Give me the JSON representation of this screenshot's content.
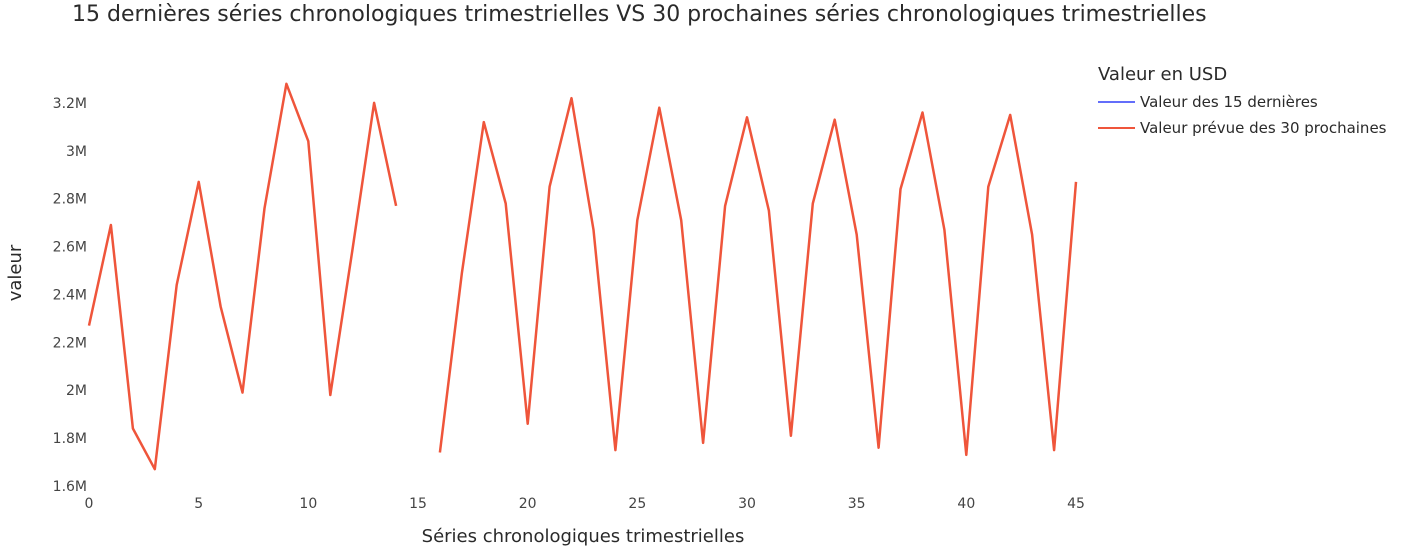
{
  "chart_data": {
    "type": "line",
    "title": "15 dernières séries chronologiques trimestrielles VS 30 prochaines séries chronologiques trimestrielles",
    "xlabel": "Séries chronologiques trimestrielles",
    "ylabel": "valeur",
    "xlim": [
      0,
      45
    ],
    "ylim": [
      1.6,
      3.3
    ],
    "x_ticks": [
      0,
      5,
      10,
      15,
      20,
      25,
      30,
      35,
      40,
      45
    ],
    "y_ticks": [
      1.6,
      1.8,
      2.0,
      2.2,
      2.4,
      2.6,
      2.8,
      3.0,
      3.2
    ],
    "y_tick_labels": [
      "1.6M",
      "1.8M",
      "2M",
      "2.2M",
      "2.4M",
      "2.6M",
      "2.8M",
      "3M",
      "3.2M"
    ],
    "legend_title": "Valeur en USD",
    "legend_position": "top-right",
    "grid": false,
    "series": [
      {
        "name": "Valeur des 15 dernières",
        "color": "#636efa",
        "x": [],
        "values": []
      },
      {
        "name": "Valeur prévue des 30 prochaines",
        "color": "#ef553b",
        "segments": [
          {
            "x": [
              0,
              1,
              2,
              3,
              4,
              5,
              6,
              7,
              8,
              9,
              10,
              11,
              12,
              13,
              14
            ],
            "values": [
              2.27,
              2.69,
              1.84,
              1.67,
              2.44,
              2.87,
              2.35,
              1.99,
              2.76,
              3.28,
              3.04,
              1.98,
              2.58,
              3.2,
              2.77
            ]
          },
          {
            "x": [
              16,
              17,
              18,
              19,
              20,
              21,
              22,
              23,
              24,
              25,
              26,
              27,
              28,
              29,
              30,
              31,
              32,
              33,
              34,
              35,
              36,
              37,
              38,
              39,
              40,
              41,
              42,
              43,
              44,
              45
            ],
            "values": [
              1.74,
              2.49,
              3.12,
              2.78,
              1.86,
              2.85,
              3.22,
              2.67,
              1.75,
              2.71,
              3.18,
              2.71,
              1.78,
              2.77,
              3.14,
              2.75,
              1.81,
              2.78,
              3.13,
              2.65,
              1.76,
              2.84,
              3.16,
              2.67,
              1.73,
              2.85,
              3.15,
              2.65,
              1.75,
              2.87
            ]
          }
        ]
      }
    ]
  }
}
